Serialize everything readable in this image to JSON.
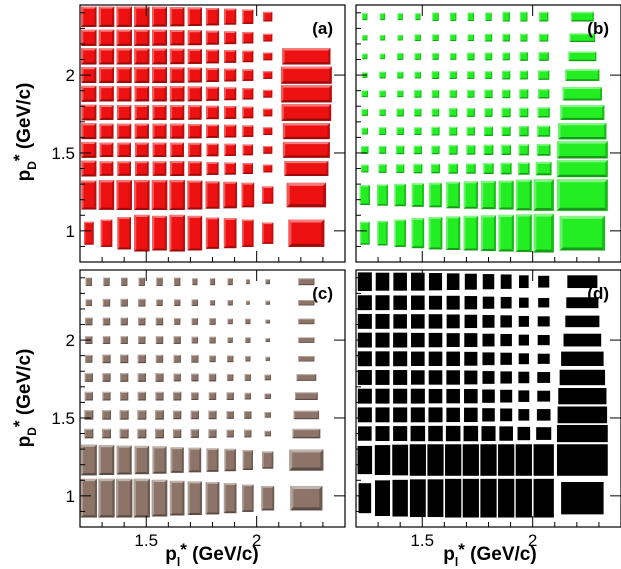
{
  "chart_data": {
    "type": "box-histogram-2d",
    "xlim": [
      1.2,
      2.4
    ],
    "ylim": [
      0.8,
      2.45
    ],
    "x_ticks": [
      1.5,
      2
    ],
    "y_ticks": [
      1,
      1.5,
      2
    ],
    "x_tick_labels": [
      "1.5",
      "2"
    ],
    "y_tick_labels": [
      "1",
      "1.5",
      "2"
    ],
    "xlabel": {
      "base": "p",
      "sub": "l",
      "sup": "*",
      "rest": " (GeV/c)"
    },
    "ylabel": {
      "base": "p",
      "sub": "D",
      "sup": "*",
      "rest": " (GeV/c)"
    },
    "x_bins": [
      1.2,
      1.28,
      1.36,
      1.44,
      1.52,
      1.6,
      1.68,
      1.76,
      1.84,
      1.92,
      2.0,
      2.1,
      2.35
    ],
    "y_bins": [
      0.85,
      1.12,
      1.34,
      1.46,
      1.58,
      1.7,
      1.82,
      1.94,
      2.06,
      2.18,
      2.3,
      2.45
    ],
    "panels": [
      {
        "label": "(a)",
        "color": "#ee1111",
        "style": "bevel",
        "counts": [
          [
            0.35,
            0.5,
            0.7,
            0.9,
            0.8,
            0.9,
            0.8,
            0.65,
            0.6,
            0.5,
            0.3,
            0.5
          ],
          [
            0.85,
            0.88,
            0.9,
            0.9,
            0.9,
            0.9,
            0.85,
            0.75,
            0.7,
            0.6,
            0.3,
            0.6
          ],
          [
            0.85,
            0.7,
            0.7,
            0.7,
            0.7,
            0.75,
            0.7,
            0.55,
            0.5,
            0.4,
            0.2,
            0.75
          ],
          [
            0.85,
            0.7,
            0.7,
            0.7,
            0.7,
            0.7,
            0.65,
            0.55,
            0.5,
            0.4,
            0.2,
            0.85
          ],
          [
            0.85,
            0.75,
            0.75,
            0.75,
            0.75,
            0.75,
            0.7,
            0.6,
            0.55,
            0.45,
            0.2,
            0.85
          ],
          [
            0.85,
            0.75,
            0.75,
            0.75,
            0.75,
            0.75,
            0.7,
            0.6,
            0.55,
            0.45,
            0.2,
            0.95
          ],
          [
            0.85,
            0.8,
            0.8,
            0.8,
            0.8,
            0.8,
            0.75,
            0.65,
            0.55,
            0.45,
            0.2,
            1.0
          ],
          [
            0.85,
            0.85,
            0.85,
            0.85,
            0.85,
            0.8,
            0.75,
            0.65,
            0.55,
            0.45,
            0.2,
            1.0
          ],
          [
            0.9,
            0.88,
            0.88,
            0.88,
            0.85,
            0.8,
            0.75,
            0.65,
            0.55,
            0.45,
            0.2,
            0.9
          ],
          [
            0.9,
            0.9,
            0.9,
            0.9,
            0.85,
            0.8,
            0.75,
            0.65,
            0.55,
            0.45,
            0.2,
            0.0
          ],
          [
            0.9,
            0.9,
            0.9,
            0.9,
            0.85,
            0.8,
            0.75,
            0.65,
            0.55,
            0.45,
            0.2,
            0.0
          ]
        ]
      },
      {
        "label": "(b)",
        "color": "#22ee22",
        "style": "bevel",
        "counts": [
          [
            0.35,
            0.4,
            0.5,
            0.6,
            0.7,
            0.75,
            0.8,
            0.85,
            0.9,
            0.95,
            1.0,
            0.8
          ],
          [
            0.4,
            0.45,
            0.5,
            0.55,
            0.6,
            0.7,
            0.75,
            0.8,
            0.85,
            0.95,
            1.0,
            1.0
          ],
          [
            0.2,
            0.25,
            0.25,
            0.3,
            0.3,
            0.35,
            0.35,
            0.4,
            0.45,
            0.5,
            0.6,
            1.0
          ],
          [
            0.2,
            0.2,
            0.25,
            0.25,
            0.25,
            0.3,
            0.3,
            0.35,
            0.35,
            0.4,
            0.45,
            1.0
          ],
          [
            0.15,
            0.2,
            0.2,
            0.2,
            0.25,
            0.25,
            0.25,
            0.3,
            0.3,
            0.35,
            0.4,
            0.9
          ],
          [
            0.15,
            0.15,
            0.2,
            0.2,
            0.2,
            0.25,
            0.25,
            0.25,
            0.3,
            0.3,
            0.35,
            0.75
          ],
          [
            0.15,
            0.15,
            0.15,
            0.2,
            0.2,
            0.2,
            0.2,
            0.25,
            0.25,
            0.3,
            0.3,
            0.6
          ],
          [
            0.1,
            0.15,
            0.15,
            0.15,
            0.2,
            0.2,
            0.2,
            0.2,
            0.25,
            0.25,
            0.3,
            0.45
          ],
          [
            0.1,
            0.1,
            0.15,
            0.15,
            0.15,
            0.15,
            0.2,
            0.2,
            0.2,
            0.25,
            0.25,
            0.3
          ],
          [
            0.1,
            0.1,
            0.1,
            0.15,
            0.15,
            0.15,
            0.15,
            0.2,
            0.2,
            0.2,
            0.2,
            0.25
          ],
          [
            0.1,
            0.1,
            0.1,
            0.1,
            0.15,
            0.15,
            0.15,
            0.15,
            0.2,
            0.2,
            0.2,
            0.2
          ]
        ]
      },
      {
        "label": "(c)",
        "color": "#8c7468",
        "style": "bevel",
        "counts": [
          [
            1.0,
            1.0,
            1.0,
            1.0,
            0.9,
            0.8,
            0.75,
            0.7,
            0.6,
            0.5,
            0.4,
            0.4
          ],
          [
            0.95,
            0.9,
            0.85,
            0.8,
            0.75,
            0.65,
            0.6,
            0.55,
            0.5,
            0.4,
            0.3,
            0.45
          ],
          [
            0.3,
            0.3,
            0.3,
            0.3,
            0.3,
            0.25,
            0.25,
            0.25,
            0.2,
            0.2,
            0.1,
            0.3
          ],
          [
            0.3,
            0.3,
            0.3,
            0.3,
            0.3,
            0.25,
            0.25,
            0.25,
            0.2,
            0.2,
            0.1,
            0.25
          ],
          [
            0.25,
            0.25,
            0.25,
            0.25,
            0.25,
            0.25,
            0.2,
            0.2,
            0.2,
            0.15,
            0.1,
            0.2
          ],
          [
            0.25,
            0.25,
            0.25,
            0.25,
            0.25,
            0.2,
            0.2,
            0.2,
            0.15,
            0.15,
            0.1,
            0.15
          ],
          [
            0.2,
            0.25,
            0.25,
            0.25,
            0.2,
            0.2,
            0.2,
            0.15,
            0.15,
            0.1,
            0.05,
            0.1
          ],
          [
            0.2,
            0.2,
            0.2,
            0.2,
            0.2,
            0.2,
            0.15,
            0.15,
            0.1,
            0.1,
            0.05,
            0.1
          ],
          [
            0.2,
            0.2,
            0.2,
            0.2,
            0.2,
            0.15,
            0.15,
            0.15,
            0.1,
            0.1,
            0.05,
            0.1
          ],
          [
            0.15,
            0.2,
            0.2,
            0.2,
            0.15,
            0.15,
            0.15,
            0.1,
            0.1,
            0.05,
            0.05,
            0.1
          ],
          [
            0.15,
            0.15,
            0.15,
            0.15,
            0.15,
            0.15,
            0.1,
            0.1,
            0.1,
            0.05,
            0.05,
            0.1
          ]
        ]
      },
      {
        "label": "(d)",
        "color": "#000000",
        "style": "flat",
        "counts": [
          [
            0.6,
            0.85,
            0.9,
            0.95,
            0.95,
            1.0,
            1.0,
            1.0,
            1.0,
            1.0,
            1.0,
            0.7
          ],
          [
            0.8,
            0.9,
            0.95,
            1.0,
            1.0,
            1.0,
            1.0,
            1.0,
            1.0,
            1.0,
            1.0,
            1.0
          ],
          [
            0.7,
            0.75,
            0.75,
            0.8,
            0.8,
            0.8,
            0.8,
            0.75,
            0.7,
            0.6,
            0.55,
            1.0
          ],
          [
            0.75,
            0.75,
            0.75,
            0.75,
            0.75,
            0.7,
            0.7,
            0.6,
            0.55,
            0.45,
            0.45,
            0.95
          ],
          [
            0.75,
            0.75,
            0.75,
            0.75,
            0.7,
            0.7,
            0.7,
            0.6,
            0.55,
            0.45,
            0.4,
            0.9
          ],
          [
            0.75,
            0.75,
            0.75,
            0.7,
            0.7,
            0.7,
            0.65,
            0.55,
            0.5,
            0.45,
            0.4,
            0.8
          ],
          [
            0.75,
            0.75,
            0.75,
            0.7,
            0.7,
            0.7,
            0.65,
            0.55,
            0.5,
            0.4,
            0.35,
            0.7
          ],
          [
            0.75,
            0.75,
            0.75,
            0.7,
            0.7,
            0.65,
            0.65,
            0.55,
            0.5,
            0.4,
            0.35,
            0.55
          ],
          [
            0.75,
            0.75,
            0.7,
            0.7,
            0.7,
            0.65,
            0.6,
            0.55,
            0.5,
            0.4,
            0.35,
            0.45
          ],
          [
            0.75,
            0.75,
            0.7,
            0.7,
            0.65,
            0.65,
            0.6,
            0.5,
            0.45,
            0.35,
            0.3,
            0.4
          ],
          [
            0.75,
            0.7,
            0.7,
            0.7,
            0.65,
            0.6,
            0.55,
            0.5,
            0.45,
            0.35,
            0.3,
            0.35
          ]
        ]
      }
    ]
  }
}
